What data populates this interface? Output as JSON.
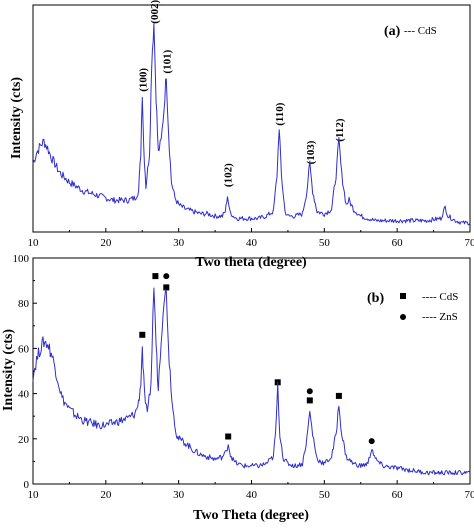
{
  "chart_data": [
    {
      "type": "line",
      "panel_label": "(a)",
      "legend": [
        {
          "text": "--- CdS",
          "marker": "none"
        }
      ],
      "xlabel": "Two theta (degree)",
      "ylabel": "Intensity (cts)",
      "xlim": [
        10,
        70
      ],
      "xticks": [
        10,
        20,
        30,
        40,
        50,
        60,
        70
      ],
      "ylim": [
        0,
        100
      ],
      "yticks": [],
      "grid": false,
      "peak_labels": [
        {
          "text": "(100)",
          "x": 25.0,
          "y": 60
        },
        {
          "text": "(002)",
          "x": 26.6,
          "y": 90
        },
        {
          "text": "(101)",
          "x": 28.3,
          "y": 68
        },
        {
          "text": "(102)",
          "x": 36.7,
          "y": 18
        },
        {
          "text": "(110)",
          "x": 43.8,
          "y": 45
        },
        {
          "text": "(103)",
          "x": 48.0,
          "y": 28
        },
        {
          "text": "(112)",
          "x": 52.0,
          "y": 38
        }
      ],
      "series": [
        {
          "x": [
            10,
            10.5,
            11,
            11.5,
            12,
            12.5,
            13,
            13.5,
            14,
            15,
            16,
            17,
            18,
            19,
            20,
            21,
            22,
            23,
            24,
            24.5,
            24.8,
            25.0,
            25.2,
            25.5,
            26.0,
            26.3,
            26.6,
            26.9,
            27.2,
            27.6,
            28.0,
            28.3,
            28.6,
            29.0,
            29.5,
            30,
            31,
            32,
            33,
            34,
            35,
            36,
            36.4,
            36.7,
            37.0,
            37.5,
            38,
            39,
            40,
            41,
            42,
            43,
            43.5,
            43.8,
            44.1,
            44.6,
            45,
            46,
            47,
            47.6,
            48.0,
            48.4,
            49,
            50,
            51,
            51.6,
            52.0,
            52.4,
            53,
            53.4,
            54,
            55,
            56,
            57,
            58,
            59,
            60,
            62,
            64,
            66,
            66.6,
            67,
            68,
            69,
            70
          ],
          "y": [
            30,
            35,
            38,
            40,
            37,
            33,
            30,
            27,
            25,
            22,
            20,
            18,
            17,
            16,
            15,
            14,
            14,
            14,
            15,
            18,
            35,
            62,
            38,
            20,
            35,
            75,
            92,
            60,
            35,
            40,
            55,
            70,
            45,
            22,
            15,
            12,
            10,
            9,
            8,
            8,
            7,
            7,
            9,
            16,
            9,
            7,
            6,
            6,
            6,
            6,
            7,
            9,
            25,
            47,
            25,
            9,
            7,
            7,
            8,
            18,
            30,
            18,
            9,
            8,
            10,
            25,
            40,
            25,
            12,
            14,
            10,
            7,
            6,
            5,
            5,
            5,
            5,
            5,
            5,
            6,
            11,
            7,
            5,
            4,
            4
          ]
        }
      ]
    },
    {
      "type": "line",
      "panel_label": "(b)",
      "legend": [
        {
          "text": "---- CdS",
          "marker": "square"
        },
        {
          "text": "---- ZnS",
          "marker": "circle"
        }
      ],
      "xlabel": "Two Theta (degree)",
      "ylabel": "Intensity (cts)",
      "xlim": [
        10,
        70
      ],
      "xticks": [
        10,
        20,
        30,
        40,
        50,
        60,
        70
      ],
      "ylim": [
        0,
        100
      ],
      "yticks": [
        0,
        20,
        40,
        60,
        80,
        100
      ],
      "grid": false,
      "markers": [
        {
          "shape": "square",
          "x": 25.0,
          "y": 66
        },
        {
          "shape": "square",
          "x": 26.8,
          "y": 92
        },
        {
          "shape": "circle",
          "x": 28.3,
          "y": 92
        },
        {
          "shape": "square",
          "x": 28.3,
          "y": 87
        },
        {
          "shape": "square",
          "x": 36.8,
          "y": 21
        },
        {
          "shape": "square",
          "x": 43.6,
          "y": 45
        },
        {
          "shape": "circle",
          "x": 48.0,
          "y": 41
        },
        {
          "shape": "square",
          "x": 48.0,
          "y": 37
        },
        {
          "shape": "square",
          "x": 52.0,
          "y": 39
        },
        {
          "shape": "circle",
          "x": 56.5,
          "y": 19
        }
      ],
      "series": [
        {
          "x": [
            10,
            10.5,
            11,
            11.5,
            12,
            12.5,
            13,
            13.5,
            14,
            15,
            16,
            17,
            18,
            19,
            20,
            21,
            22,
            23,
            24,
            24.5,
            24.8,
            25.0,
            25.3,
            25.7,
            26.2,
            26.6,
            26.9,
            27.2,
            27.6,
            28.0,
            28.3,
            28.7,
            29.2,
            29.7,
            30,
            31,
            32,
            33,
            34,
            35,
            36,
            36.5,
            36.8,
            37.1,
            37.6,
            38,
            39,
            40,
            41,
            42,
            43,
            43.3,
            43.6,
            43.9,
            44.4,
            45,
            46,
            47,
            47.6,
            48.0,
            48.4,
            49,
            50,
            51,
            51.6,
            52.0,
            52.4,
            53,
            54,
            55,
            56,
            56.5,
            57,
            58,
            60,
            62,
            64,
            66,
            68,
            70
          ],
          "y": [
            48,
            55,
            60,
            63,
            62,
            58,
            52,
            45,
            38,
            33,
            30,
            28,
            27,
            26,
            26,
            27,
            28,
            29,
            31,
            36,
            45,
            60,
            40,
            30,
            45,
            88,
            62,
            42,
            65,
            83,
            85,
            55,
            33,
            22,
            20,
            18,
            15,
            13,
            12,
            11,
            12,
            14,
            18,
            13,
            10,
            9,
            8,
            8,
            8,
            9,
            12,
            22,
            43,
            22,
            11,
            9,
            8,
            9,
            20,
            32,
            22,
            11,
            9,
            12,
            22,
            35,
            22,
            12,
            9,
            8,
            9,
            16,
            11,
            8,
            7,
            6,
            5,
            5,
            5,
            5
          ]
        }
      ]
    }
  ]
}
